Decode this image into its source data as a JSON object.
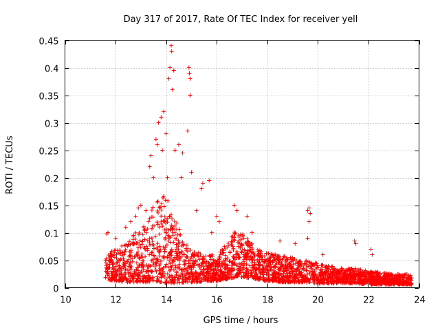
{
  "chart_data": {
    "type": "scatter",
    "title": "Day 317 of 2017, Rate Of TEC Index for receiver yell",
    "xlabel": "GPS time / hours",
    "ylabel": "ROTI / TECUs",
    "xlim": [
      10,
      24
    ],
    "ylim": [
      0,
      0.45
    ],
    "xticks": [
      10,
      12,
      14,
      16,
      18,
      20,
      22,
      24
    ],
    "yticks": [
      0,
      0.05,
      0.1,
      0.15,
      0.2,
      0.25,
      0.3,
      0.35,
      0.4,
      0.45
    ],
    "grid": true,
    "marker": "+",
    "color": "#ff0000",
    "envelope": {
      "x": [
        11.6,
        12.0,
        12.4,
        12.8,
        13.2,
        13.6,
        14.0,
        14.4,
        14.8,
        15.2,
        15.6,
        16.0,
        16.4,
        16.8,
        17.2,
        17.6,
        18.0,
        18.5,
        19.0,
        19.5,
        20.0,
        20.5,
        21.0,
        21.5,
        22.0,
        22.5,
        23.0,
        23.7
      ],
      "base": [
        0.015,
        0.012,
        0.01,
        0.01,
        0.01,
        0.012,
        0.008,
        0.008,
        0.01,
        0.01,
        0.012,
        0.012,
        0.015,
        0.02,
        0.018,
        0.015,
        0.012,
        0.01,
        0.01,
        0.01,
        0.008,
        0.008,
        0.008,
        0.008,
        0.006,
        0.006,
        0.006,
        0.006
      ],
      "top": [
        0.06,
        0.07,
        0.08,
        0.1,
        0.12,
        0.16,
        0.17,
        0.12,
        0.08,
        0.065,
        0.06,
        0.06,
        0.08,
        0.11,
        0.09,
        0.07,
        0.065,
        0.06,
        0.055,
        0.05,
        0.045,
        0.04,
        0.035,
        0.035,
        0.03,
        0.028,
        0.025,
        0.025
      ]
    },
    "outliers": [
      [
        11.65,
        0.098
      ],
      [
        11.7,
        0.1
      ],
      [
        12.0,
        0.09
      ],
      [
        12.4,
        0.11
      ],
      [
        12.6,
        0.12
      ],
      [
        12.8,
        0.13
      ],
      [
        12.9,
        0.145
      ],
      [
        13.0,
        0.15
      ],
      [
        13.2,
        0.14
      ],
      [
        13.35,
        0.22
      ],
      [
        13.4,
        0.24
      ],
      [
        13.5,
        0.2
      ],
      [
        13.6,
        0.27
      ],
      [
        13.65,
        0.26
      ],
      [
        13.7,
        0.3
      ],
      [
        13.8,
        0.31
      ],
      [
        13.85,
        0.25
      ],
      [
        13.9,
        0.32
      ],
      [
        14.0,
        0.28
      ],
      [
        14.05,
        0.2
      ],
      [
        14.1,
        0.38
      ],
      [
        14.15,
        0.4
      ],
      [
        14.2,
        0.44
      ],
      [
        14.22,
        0.43
      ],
      [
        14.25,
        0.36
      ],
      [
        14.3,
        0.395
      ],
      [
        14.35,
        0.25
      ],
      [
        14.5,
        0.26
      ],
      [
        14.6,
        0.2
      ],
      [
        14.65,
        0.245
      ],
      [
        14.9,
        0.4
      ],
      [
        14.92,
        0.39
      ],
      [
        14.95,
        0.38
      ],
      [
        14.85,
        0.285
      ],
      [
        14.95,
        0.35
      ],
      [
        15.0,
        0.21
      ],
      [
        15.2,
        0.14
      ],
      [
        15.4,
        0.18
      ],
      [
        15.45,
        0.19
      ],
      [
        15.7,
        0.195
      ],
      [
        15.8,
        0.1
      ],
      [
        16.0,
        0.13
      ],
      [
        16.1,
        0.12
      ],
      [
        16.7,
        0.15
      ],
      [
        16.8,
        0.14
      ],
      [
        17.2,
        0.13
      ],
      [
        17.4,
        0.1
      ],
      [
        18.5,
        0.085
      ],
      [
        19.1,
        0.08
      ],
      [
        19.6,
        0.14
      ],
      [
        19.65,
        0.145
      ],
      [
        19.7,
        0.135
      ],
      [
        19.65,
        0.12
      ],
      [
        19.6,
        0.09
      ],
      [
        20.2,
        0.06
      ],
      [
        21.45,
        0.085
      ],
      [
        21.5,
        0.08
      ],
      [
        22.1,
        0.07
      ],
      [
        22.15,
        0.06
      ]
    ]
  }
}
